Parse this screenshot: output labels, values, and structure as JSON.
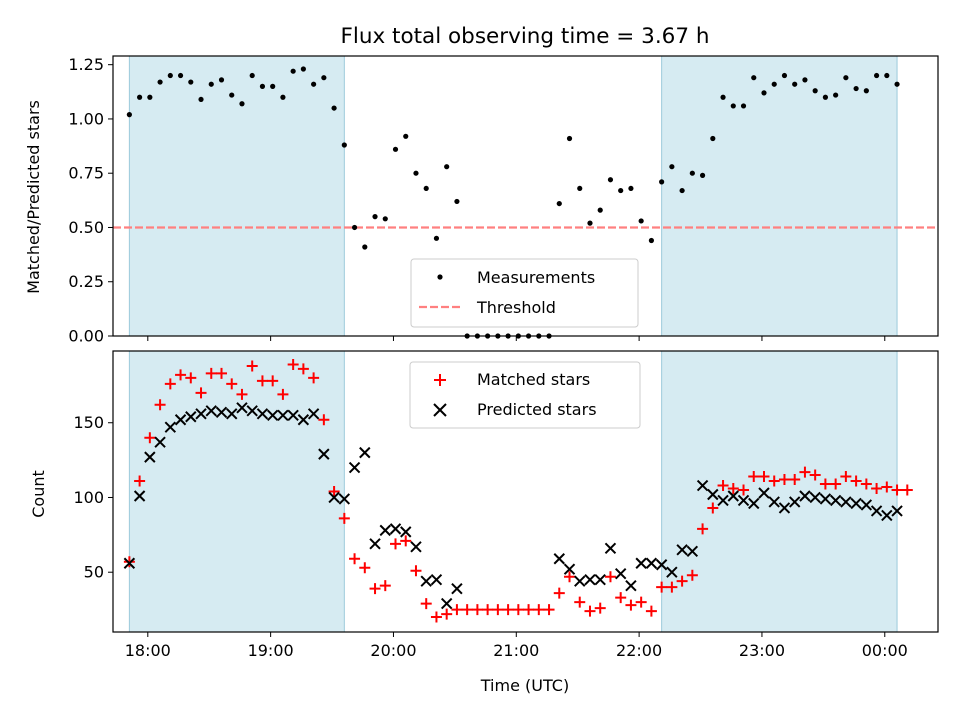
{
  "chart_data": [
    {
      "type": "scatter",
      "title": "Flux total observing time = 3.67 h",
      "xlabel": "",
      "ylabel": "Matched/Predicted stars",
      "ylim": [
        0,
        1.29
      ],
      "xlim": [
        "17:43",
        "00:26"
      ],
      "x_ticks": [
        "18:00",
        "19:00",
        "20:00",
        "21:00",
        "22:00",
        "23:00",
        "00:00"
      ],
      "y_ticks": [
        "0.00",
        "0.25",
        "0.50",
        "0.75",
        "1.00",
        "1.25"
      ],
      "shaded_intervals": [
        [
          "17:51",
          "19:36"
        ],
        [
          "22:11",
          "00:06"
        ]
      ],
      "threshold": {
        "name": "Threshold",
        "value": 0.5,
        "color": "#ff8080"
      },
      "legend": {
        "placement": "lower-center",
        "entries": [
          "Measurements",
          "Threshold"
        ]
      },
      "series": [
        {
          "name": "Measurements",
          "color": "#000000",
          "marker": "dot",
          "points": [
            [
              "17:51",
              1.02
            ],
            [
              "17:56",
              1.1
            ],
            [
              "18:01",
              1.1
            ],
            [
              "18:06",
              1.17
            ],
            [
              "18:11",
              1.2
            ],
            [
              "18:16",
              1.2
            ],
            [
              "18:21",
              1.17
            ],
            [
              "18:26",
              1.09
            ],
            [
              "18:31",
              1.16
            ],
            [
              "18:36",
              1.18
            ],
            [
              "18:41",
              1.11
            ],
            [
              "18:46",
              1.07
            ],
            [
              "18:51",
              1.2
            ],
            [
              "18:56",
              1.15
            ],
            [
              "19:01",
              1.15
            ],
            [
              "19:06",
              1.1
            ],
            [
              "19:11",
              1.22
            ],
            [
              "19:16",
              1.23
            ],
            [
              "19:21",
              1.16
            ],
            [
              "19:26",
              1.19
            ],
            [
              "19:31",
              1.05
            ],
            [
              "19:36",
              0.88
            ],
            [
              "19:41",
              0.5
            ],
            [
              "19:46",
              0.41
            ],
            [
              "19:51",
              0.55
            ],
            [
              "19:56",
              0.54
            ],
            [
              "20:01",
              0.86
            ],
            [
              "20:06",
              0.92
            ],
            [
              "20:11",
              0.75
            ],
            [
              "20:16",
              0.68
            ],
            [
              "20:21",
              0.45
            ],
            [
              "20:26",
              0.78
            ],
            [
              "20:31",
              0.62
            ],
            [
              "20:36",
              0.0
            ],
            [
              "20:41",
              0.0
            ],
            [
              "20:46",
              0.0
            ],
            [
              "20:51",
              0.0
            ],
            [
              "20:56",
              0.0
            ],
            [
              "21:01",
              0.0
            ],
            [
              "21:06",
              0.0
            ],
            [
              "21:11",
              0.0
            ],
            [
              "21:16",
              0.0
            ],
            [
              "21:21",
              0.61
            ],
            [
              "21:26",
              0.91
            ],
            [
              "21:31",
              0.68
            ],
            [
              "21:36",
              0.52
            ],
            [
              "21:41",
              0.58
            ],
            [
              "21:46",
              0.72
            ],
            [
              "21:51",
              0.67
            ],
            [
              "21:56",
              0.68
            ],
            [
              "22:01",
              0.53
            ],
            [
              "22:06",
              0.44
            ],
            [
              "22:11",
              0.71
            ],
            [
              "22:16",
              0.78
            ],
            [
              "22:21",
              0.67
            ],
            [
              "22:26",
              0.75
            ],
            [
              "22:31",
              0.74
            ],
            [
              "22:36",
              0.91
            ],
            [
              "22:41",
              1.1
            ],
            [
              "22:46",
              1.06
            ],
            [
              "22:51",
              1.06
            ],
            [
              "22:56",
              1.19
            ],
            [
              "23:01",
              1.12
            ],
            [
              "23:06",
              1.16
            ],
            [
              "23:11",
              1.2
            ],
            [
              "23:16",
              1.16
            ],
            [
              "23:21",
              1.18
            ],
            [
              "23:26",
              1.13
            ],
            [
              "23:31",
              1.1
            ],
            [
              "23:36",
              1.11
            ],
            [
              "23:41",
              1.19
            ],
            [
              "23:46",
              1.14
            ],
            [
              "23:51",
              1.13
            ],
            [
              "23:56",
              1.2
            ],
            [
              "00:01",
              1.2
            ],
            [
              "00:06",
              1.16
            ]
          ]
        }
      ]
    },
    {
      "type": "scatter",
      "title": "",
      "xlabel": "Time (UTC)",
      "ylabel": "Count",
      "ylim": [
        10,
        198
      ],
      "xlim": [
        "17:43",
        "00:26"
      ],
      "x_ticks": [
        "18:00",
        "19:00",
        "20:00",
        "21:00",
        "22:00",
        "23:00",
        "00:00"
      ],
      "y_ticks": [
        "50",
        "100",
        "150"
      ],
      "shaded_intervals": [
        [
          "17:51",
          "19:36"
        ],
        [
          "22:11",
          "00:06"
        ]
      ],
      "legend": {
        "placement": "top-center",
        "entries": [
          "Matched stars",
          "Predicted stars"
        ]
      },
      "series": [
        {
          "name": "Matched stars",
          "color": "#ff0000",
          "marker": "plus",
          "points": [
            [
              "17:51",
              57
            ],
            [
              "17:56",
              111
            ],
            [
              "18:01",
              140
            ],
            [
              "18:06",
              162
            ],
            [
              "18:11",
              176
            ],
            [
              "18:16",
              182
            ],
            [
              "18:21",
              180
            ],
            [
              "18:26",
              170
            ],
            [
              "18:31",
              183
            ],
            [
              "18:36",
              183
            ],
            [
              "18:41",
              176
            ],
            [
              "18:46",
              169
            ],
            [
              "18:51",
              188
            ],
            [
              "18:56",
              178
            ],
            [
              "19:01",
              178
            ],
            [
              "19:06",
              169
            ],
            [
              "19:11",
              189
            ],
            [
              "19:16",
              186
            ],
            [
              "19:21",
              180
            ],
            [
              "19:26",
              152
            ],
            [
              "19:31",
              104
            ],
            [
              "19:36",
              86
            ],
            [
              "19:41",
              59
            ],
            [
              "19:46",
              53
            ],
            [
              "19:51",
              39
            ],
            [
              "19:56",
              41
            ],
            [
              "20:01",
              69
            ],
            [
              "20:06",
              71
            ],
            [
              "20:11",
              51
            ],
            [
              "20:16",
              29
            ],
            [
              "20:21",
              20
            ],
            [
              "20:26",
              22
            ],
            [
              "20:31",
              25
            ],
            [
              "20:36",
              25
            ],
            [
              "20:41",
              25
            ],
            [
              "20:46",
              25
            ],
            [
              "20:51",
              25
            ],
            [
              "20:56",
              25
            ],
            [
              "21:01",
              25
            ],
            [
              "21:06",
              25
            ],
            [
              "21:11",
              25
            ],
            [
              "21:16",
              25
            ],
            [
              "21:21",
              36
            ],
            [
              "21:26",
              47
            ],
            [
              "21:31",
              30
            ],
            [
              "21:36",
              24
            ],
            [
              "21:41",
              26
            ],
            [
              "21:46",
              47
            ],
            [
              "21:51",
              33
            ],
            [
              "21:56",
              28
            ],
            [
              "22:01",
              30
            ],
            [
              "22:06",
              24
            ],
            [
              "22:11",
              40
            ],
            [
              "22:16",
              40
            ],
            [
              "22:21",
              44
            ],
            [
              "22:26",
              48
            ],
            [
              "22:31",
              79
            ],
            [
              "22:36",
              93
            ],
            [
              "22:41",
              108
            ],
            [
              "22:46",
              106
            ],
            [
              "22:51",
              105
            ],
            [
              "22:56",
              114
            ],
            [
              "23:01",
              114
            ],
            [
              "23:06",
              111
            ],
            [
              "23:11",
              112
            ],
            [
              "23:16",
              112
            ],
            [
              "23:21",
              117
            ],
            [
              "23:26",
              115
            ],
            [
              "23:31",
              109
            ],
            [
              "23:36",
              109
            ],
            [
              "23:41",
              114
            ],
            [
              "23:46",
              111
            ],
            [
              "23:51",
              109
            ],
            [
              "23:56",
              106
            ],
            [
              "00:01",
              107
            ],
            [
              "00:06",
              105
            ],
            [
              "00:11",
              105
            ]
          ]
        },
        {
          "name": "Predicted stars",
          "color": "#000000",
          "marker": "cross",
          "points": [
            [
              "17:51",
              56
            ],
            [
              "17:56",
              101
            ],
            [
              "18:01",
              127
            ],
            [
              "18:06",
              137
            ],
            [
              "18:11",
              147
            ],
            [
              "18:16",
              152
            ],
            [
              "18:21",
              154
            ],
            [
              "18:26",
              156
            ],
            [
              "18:31",
              158
            ],
            [
              "18:36",
              157
            ],
            [
              "18:41",
              156
            ],
            [
              "18:46",
              160
            ],
            [
              "18:51",
              158
            ],
            [
              "18:56",
              156
            ],
            [
              "19:01",
              155
            ],
            [
              "19:06",
              155
            ],
            [
              "19:11",
              155
            ],
            [
              "19:16",
              152
            ],
            [
              "19:21",
              156
            ],
            [
              "19:26",
              129
            ],
            [
              "19:31",
              100
            ],
            [
              "19:36",
              99
            ],
            [
              "19:41",
              120
            ],
            [
              "19:46",
              130
            ],
            [
              "19:51",
              69
            ],
            [
              "19:56",
              78
            ],
            [
              "20:01",
              79
            ],
            [
              "20:06",
              77
            ],
            [
              "20:11",
              67
            ],
            [
              "20:16",
              44
            ],
            [
              "20:21",
              45
            ],
            [
              "20:26",
              29
            ],
            [
              "20:31",
              39
            ],
            [
              "21:21",
              59
            ],
            [
              "21:26",
              52
            ],
            [
              "21:31",
              44
            ],
            [
              "21:36",
              45
            ],
            [
              "21:41",
              45
            ],
            [
              "21:46",
              66
            ],
            [
              "21:51",
              49
            ],
            [
              "21:56",
              41
            ],
            [
              "22:01",
              56
            ],
            [
              "22:06",
              56
            ],
            [
              "22:11",
              55
            ],
            [
              "22:16",
              50
            ],
            [
              "22:21",
              65
            ],
            [
              "22:26",
              64
            ],
            [
              "22:31",
              108
            ],
            [
              "22:36",
              102
            ],
            [
              "22:41",
              98
            ],
            [
              "22:46",
              101
            ],
            [
              "22:51",
              98
            ],
            [
              "22:56",
              96
            ],
            [
              "23:01",
              103
            ],
            [
              "23:06",
              97
            ],
            [
              "23:11",
              93
            ],
            [
              "23:16",
              97
            ],
            [
              "23:21",
              101
            ],
            [
              "23:26",
              100
            ],
            [
              "23:31",
              99
            ],
            [
              "23:36",
              98
            ],
            [
              "23:41",
              97
            ],
            [
              "23:46",
              96
            ],
            [
              "23:51",
              95
            ],
            [
              "23:56",
              91
            ],
            [
              "00:01",
              88
            ],
            [
              "00:06",
              91
            ]
          ]
        }
      ]
    }
  ]
}
